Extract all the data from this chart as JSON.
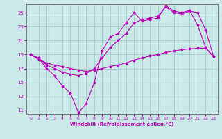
{
  "background_color": "#cbe8e8",
  "grid_color": "#a0cccc",
  "line_color": "#bb00bb",
  "xlabel": "Windchill (Refroidissement éolien,°C)",
  "xlim_min": -0.5,
  "xlim_max": 23.5,
  "ylim_min": 10.5,
  "ylim_max": 26.2,
  "yticks": [
    11,
    13,
    15,
    17,
    19,
    21,
    23,
    25
  ],
  "xticks": [
    0,
    1,
    2,
    3,
    4,
    5,
    6,
    7,
    8,
    9,
    10,
    11,
    12,
    13,
    14,
    15,
    16,
    17,
    18,
    19,
    20,
    21,
    22,
    23
  ],
  "line1_x": [
    0,
    1,
    2,
    3,
    4,
    5,
    6,
    7,
    8,
    9,
    10,
    11,
    12,
    13,
    14,
    15,
    16,
    17,
    18,
    19,
    20,
    21,
    22,
    23
  ],
  "line1_y": [
    19.0,
    18.5,
    17.0,
    16.0,
    14.5,
    13.5,
    10.7,
    12.0,
    15.0,
    19.5,
    21.5,
    22.0,
    23.5,
    25.0,
    23.8,
    24.0,
    24.2,
    26.0,
    25.2,
    25.0,
    25.3,
    23.2,
    20.0,
    18.7
  ],
  "line2_x": [
    0,
    1,
    2,
    3,
    4,
    5,
    6,
    7,
    8,
    9,
    10,
    11,
    12,
    13,
    14,
    15,
    16,
    17,
    18,
    19,
    20,
    21,
    22,
    23
  ],
  "line2_y": [
    19.0,
    18.3,
    17.8,
    17.5,
    17.3,
    17.0,
    16.8,
    16.6,
    16.8,
    17.0,
    17.3,
    17.5,
    17.8,
    18.2,
    18.5,
    18.8,
    19.0,
    19.3,
    19.5,
    19.7,
    19.8,
    19.9,
    19.9,
    18.7
  ],
  "line3_x": [
    0,
    1,
    2,
    3,
    4,
    5,
    6,
    7,
    8,
    9,
    10,
    11,
    12,
    13,
    14,
    15,
    16,
    17,
    18,
    19,
    20,
    21,
    22,
    23
  ],
  "line3_y": [
    19.0,
    18.5,
    17.5,
    17.0,
    16.5,
    16.2,
    16.0,
    16.3,
    17.0,
    18.5,
    20.0,
    21.0,
    22.0,
    23.5,
    24.0,
    24.2,
    24.5,
    25.8,
    25.0,
    24.8,
    25.2,
    25.0,
    22.5,
    18.7
  ]
}
